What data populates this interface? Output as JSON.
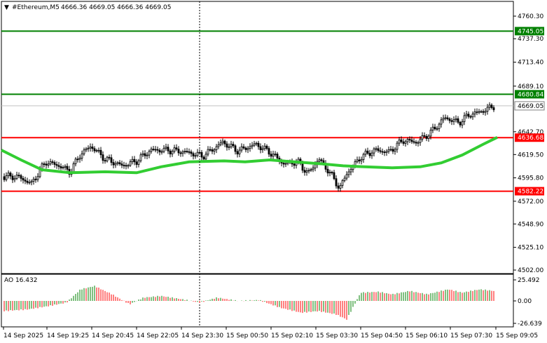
{
  "header": {
    "symbol_timeframe": "#Ethereum,M5",
    "ohlc": "4666.36 4669.05 4666.36 4669.05"
  },
  "price_axis": {
    "ticks": [
      "4760.30",
      "4737.30",
      "4713.40",
      "4689.10",
      "4642.70",
      "4619.50",
      "4595.80",
      "4572.00",
      "4548.90",
      "4525.10",
      "4502.00"
    ],
    "tick_values": [
      4760.3,
      4737.3,
      4713.4,
      4689.1,
      4642.7,
      4619.5,
      4595.8,
      4572.0,
      4548.9,
      4525.1,
      4502.0
    ]
  },
  "levels": [
    {
      "label": "4745.05",
      "value": 4745.05,
      "color": "#008000",
      "text_color": "#ffffff"
    },
    {
      "label": "4680.84",
      "value": 4680.84,
      "color": "#008000",
      "text_color": "#ffffff"
    },
    {
      "label": "4636.68",
      "value": 4636.68,
      "color": "#ff0000",
      "text_color": "#ffffff"
    },
    {
      "label": "4582.22",
      "value": 4582.22,
      "color": "#ff0000",
      "text_color": "#ffffff"
    }
  ],
  "current_price": {
    "label": "4669.05",
    "value": 4669.05,
    "color": "#c0c0c0"
  },
  "oscillator": {
    "title": "AO 16.432",
    "ticks": [
      "25.492",
      "0.00",
      "-26.639"
    ],
    "tick_values": [
      25.492,
      0,
      -26.639
    ],
    "up_color": "#008000",
    "down_color": "#ff0000"
  },
  "time_axis": {
    "labels": [
      "14 Sep 2025",
      "14 Sep 19:25",
      "14 Sep 20:45",
      "14 Sep 22:05",
      "14 Sep 23:30",
      "15 Sep 00:50",
      "15 Sep 02:10",
      "15 Sep 03:30",
      "15 Sep 04:50",
      "15 Sep 06:10",
      "15 Sep 07:30",
      "15 Sep 09:05"
    ]
  },
  "colors": {
    "candle": "#000000",
    "moving_average": "#32cd32",
    "axis": "#000000",
    "cursor_line": "#000000"
  }
}
